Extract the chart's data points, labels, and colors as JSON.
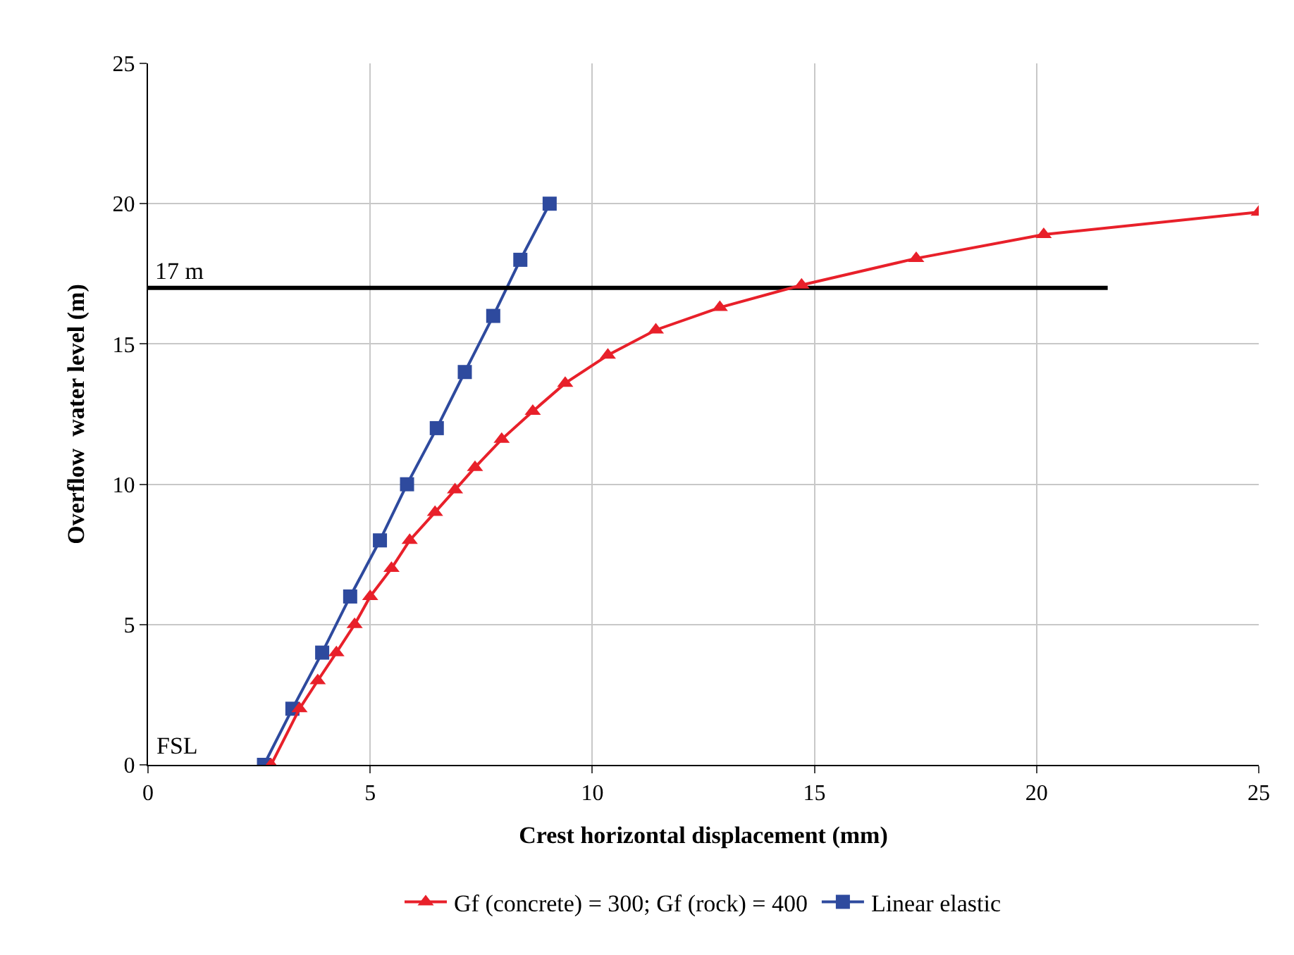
{
  "chart_data": {
    "type": "line",
    "xlabel": "Crest horizontal displacement (mm)",
    "ylabel": "Overflow  water level (m)",
    "xlim": [
      0,
      25
    ],
    "xticks": [
      0,
      5,
      10,
      15,
      20,
      25
    ],
    "ylim": [
      0,
      25
    ],
    "yticks": [
      0,
      5,
      10,
      15,
      20,
      25
    ],
    "grid": true,
    "legend": "bottom",
    "series": [
      {
        "name": "Gf (concrete) = 300; Gf (rock) = 400",
        "color": "#e8202a",
        "marker": "triangle",
        "x": [
          2.77,
          3.41,
          3.82,
          4.24,
          4.65,
          5.0,
          5.48,
          5.89,
          6.46,
          6.91,
          7.36,
          7.96,
          8.66,
          9.39,
          10.35,
          11.43,
          12.87,
          14.71,
          17.29,
          20.16,
          25.0
        ],
        "values": [
          0,
          2,
          3,
          4,
          5,
          6,
          7,
          8,
          9,
          9.8,
          10.6,
          11.6,
          12.6,
          13.6,
          14.6,
          15.5,
          16.3,
          17.1,
          18.05,
          18.9,
          19.7
        ]
      },
      {
        "name": "Linear elastic",
        "color": "#2e4a9e",
        "marker": "square",
        "x": [
          2.61,
          3.25,
          3.92,
          4.55,
          5.22,
          5.83,
          6.5,
          7.13,
          7.77,
          8.38,
          9.04
        ],
        "values": [
          0,
          2,
          4,
          6,
          8,
          10,
          12,
          14,
          16,
          18,
          20
        ]
      },
      {
        "color": "#000000",
        "marker": "none",
        "x": [
          0,
          21.6
        ],
        "values": [
          17,
          17
        ]
      }
    ],
    "annotations": [
      {
        "text": "17 m",
        "x": 0.1,
        "y": 17
      },
      "FSL"
    ]
  }
}
